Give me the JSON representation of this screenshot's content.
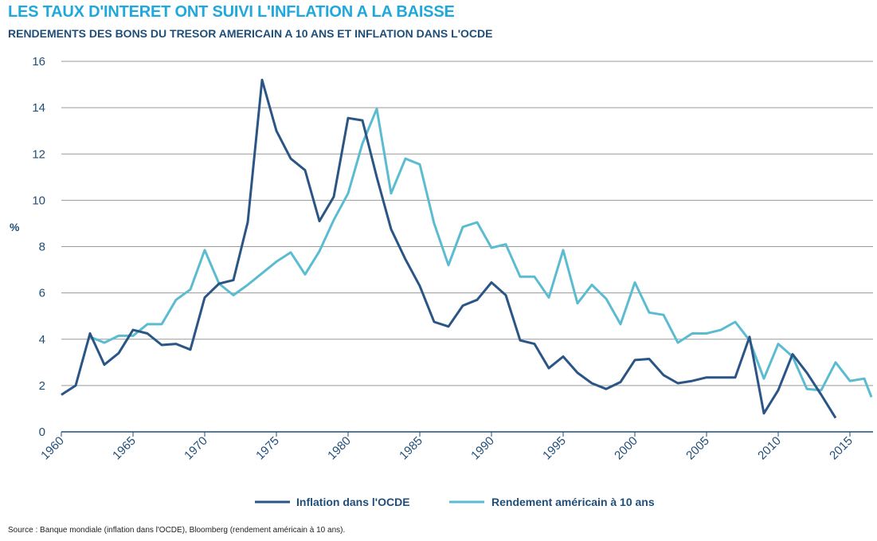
{
  "header": {
    "title": "LES TAUX D'INTERET ONT SUIVI L'INFLATION A LA BAISSE",
    "subtitle": "RENDEMENTS DES BONS DU TRESOR AMERICAIN A 10 ANS ET INFLATION DANS L'OCDE"
  },
  "footer": {
    "source": "Source : Banque mondiale (inflation dans l'OCDE), Bloomberg (rendement américain à 10 ans)."
  },
  "chart_data": {
    "type": "line",
    "title": "RENDEMENTS DES BONS DU TRESOR AMERICAIN A 10 ANS ET INFLATION DANS L'OCDE",
    "xlabel": "",
    "ylabel": "%",
    "xlim": [
      1960,
      2016.5
    ],
    "ylim": [
      0,
      16
    ],
    "yticks": [
      0,
      2,
      4,
      6,
      8,
      10,
      12,
      14,
      16
    ],
    "xticks": [
      1960,
      1965,
      1970,
      1975,
      1980,
      1985,
      1990,
      1995,
      2000,
      2005,
      2010,
      2015
    ],
    "grid": "horizontal",
    "legend": "bottom",
    "colors": {
      "inflation": "#2a5585",
      "yield": "#5bbcd1"
    },
    "series": [
      {
        "name": "Inflation dans l'OCDE",
        "x": [
          1960,
          1961,
          1962,
          1963,
          1964,
          1965,
          1966,
          1967,
          1968,
          1969,
          1970,
          1971,
          1972,
          1973,
          1974,
          1975,
          1976,
          1977,
          1978,
          1979,
          1980,
          1981,
          1982,
          1983,
          1984,
          1985,
          1986,
          1987,
          1988,
          1989,
          1990,
          1991,
          1992,
          1993,
          1994,
          1995,
          1996,
          1997,
          1998,
          1999,
          2000,
          2001,
          2002,
          2003,
          2004,
          2005,
          2006,
          2007,
          2008,
          2009,
          2010,
          2011,
          2012,
          2013,
          2014
        ],
        "values": [
          1.6,
          2.0,
          4.25,
          2.9,
          3.4,
          4.4,
          4.25,
          3.75,
          3.8,
          3.55,
          5.8,
          6.4,
          6.55,
          9.05,
          15.2,
          13.0,
          11.8,
          11.3,
          9.1,
          10.15,
          13.55,
          13.45,
          11.0,
          8.75,
          7.45,
          6.3,
          4.75,
          4.55,
          5.45,
          5.7,
          6.45,
          5.9,
          3.95,
          3.8,
          2.75,
          3.25,
          2.55,
          2.1,
          1.85,
          2.15,
          3.1,
          3.15,
          2.45,
          2.1,
          2.2,
          2.35,
          2.35,
          2.35,
          4.1,
          0.8,
          1.8,
          3.35,
          2.55,
          1.6,
          0.6
        ]
      },
      {
        "name": "Rendement américain à 10 ans",
        "x": [
          1962,
          1963,
          1964,
          1965,
          1966,
          1967,
          1968,
          1969,
          1970,
          1971,
          1972,
          1973,
          1974,
          1975,
          1976,
          1977,
          1978,
          1979,
          1980,
          1981,
          1982,
          1983,
          1984,
          1985,
          1986,
          1987,
          1988,
          1989,
          1990,
          1991,
          1992,
          1993,
          1994,
          1995,
          1996,
          1997,
          1998,
          1999,
          2000,
          2001,
          2002,
          2003,
          2004,
          2005,
          2006,
          2007,
          2008,
          2009,
          2010,
          2011,
          2012,
          2013,
          2014,
          2015,
          2016,
          2016.5
        ],
        "values": [
          4.1,
          3.85,
          4.15,
          4.15,
          4.65,
          4.65,
          5.7,
          6.15,
          7.85,
          6.4,
          5.9,
          6.35,
          6.85,
          7.35,
          7.75,
          6.8,
          7.8,
          9.15,
          10.3,
          12.45,
          13.95,
          10.3,
          11.8,
          11.55,
          9.0,
          7.2,
          8.85,
          9.05,
          7.95,
          8.1,
          6.7,
          6.7,
          5.8,
          7.85,
          5.55,
          6.35,
          5.75,
          4.65,
          6.45,
          5.15,
          5.05,
          3.85,
          4.25,
          4.25,
          4.4,
          4.75,
          3.95,
          2.3,
          3.8,
          3.25,
          1.85,
          1.8,
          3.0,
          2.2,
          2.3,
          1.5
        ]
      }
    ]
  }
}
